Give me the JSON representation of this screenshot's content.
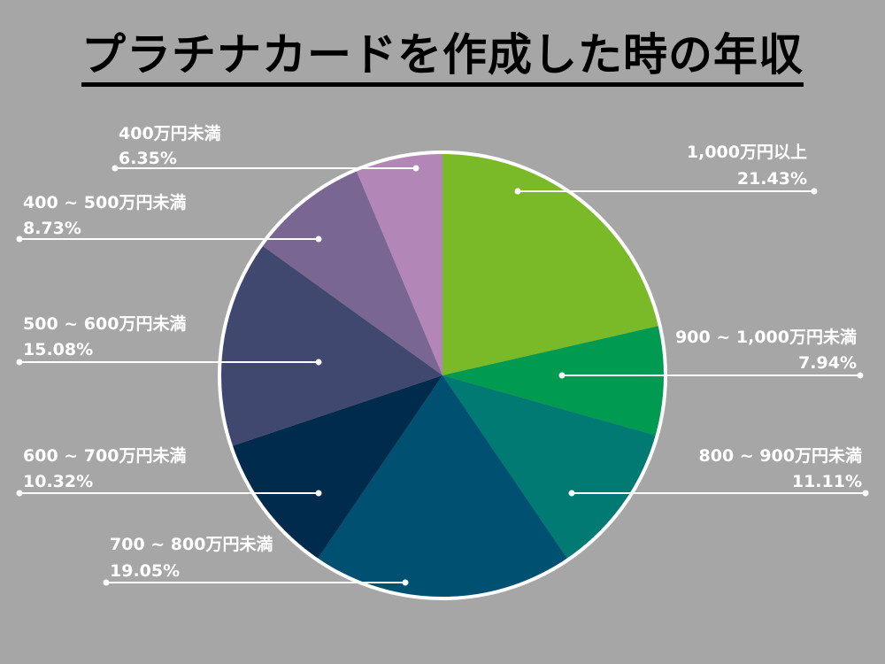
{
  "chart_data": {
    "type": "pie",
    "title": "プラチナカードを作成した時の年収",
    "slices": [
      {
        "label": "1,000万円以上",
        "value": 21.43,
        "pct": "21.43%",
        "color": "#7aba28"
      },
      {
        "label": "900 ~ 1,000万円未満",
        "value": 7.94,
        "pct": "7.94%",
        "color": "#009b50"
      },
      {
        "label": "800 ~ 900万円未満",
        "value": 11.11,
        "pct": "11.11%",
        "color": "#007a73"
      },
      {
        "label": "700 ~ 800万円未満",
        "value": 19.05,
        "pct": "19.05%",
        "color": "#005072"
      },
      {
        "label": "600 ~ 700万円未満",
        "value": 10.32,
        "pct": "10.32%",
        "color": "#002b4d"
      },
      {
        "label": "500 ~ 600万円未満",
        "value": 15.08,
        "pct": "15.08%",
        "color": "#404870"
      },
      {
        "label": "400 ~ 500万円未満",
        "value": 8.73,
        "pct": "8.73%",
        "color": "#7a6692"
      },
      {
        "label": "400万円未満",
        "value": 6.35,
        "pct": "6.35%",
        "color": "#b286b6"
      }
    ],
    "legend": "none"
  }
}
